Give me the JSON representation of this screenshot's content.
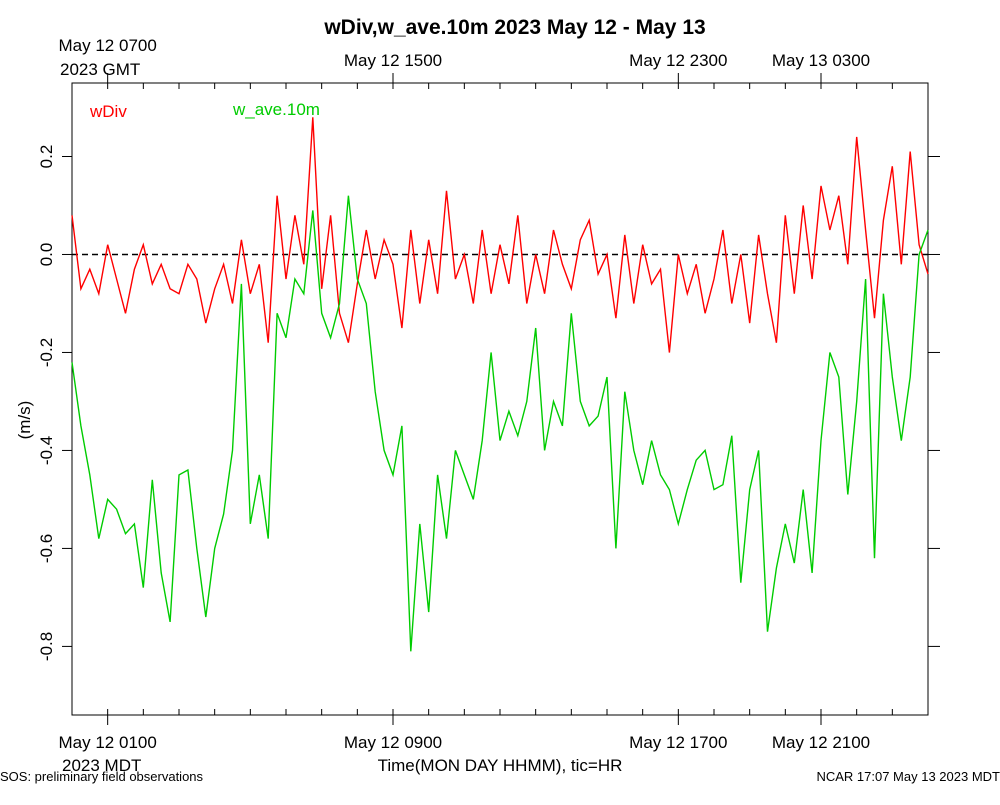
{
  "chart_data": {
    "type": "line",
    "title": "wDiv,w_ave.10m 2023 May 12 - May 13",
    "xlabel": "Time(MON DAY HHMM), tic=HR",
    "ylabel": "(m/s)",
    "x_sublabel": "2023 MDT",
    "x2_sublabel": "2023 GMT",
    "footer_left": "SOS: preliminary field observations",
    "footer_right": "NCAR 17:07 May 13 2023 MDT",
    "xlim": [
      0,
      24
    ],
    "ylim": [
      -0.94,
      0.35
    ],
    "xticks": [
      {
        "value": 1,
        "label": "May 12 0100"
      },
      {
        "value": 9,
        "label": "May 12 0900"
      },
      {
        "value": 17,
        "label": "May 12 1700"
      },
      {
        "value": 21,
        "label": "May 12 2100"
      }
    ],
    "x2ticks": [
      {
        "value": 1,
        "label": "May 12 0700"
      },
      {
        "value": 9,
        "label": "May 12 1500"
      },
      {
        "value": 17,
        "label": "May 12 2300"
      },
      {
        "value": 21,
        "label": "May 13 0300"
      }
    ],
    "xminorticks": [
      0,
      1,
      2,
      3,
      4,
      5,
      6,
      7,
      8,
      9,
      10,
      11,
      12,
      13,
      14,
      15,
      16,
      17,
      18,
      19,
      20,
      21,
      22,
      23,
      24
    ],
    "yticks": [
      0.2,
      {
        "value": 0,
        "label": "0.0"
      },
      -0.2,
      -0.4,
      -0.6,
      -0.8
    ],
    "hline": 0,
    "x": [
      0,
      0.25,
      0.5,
      0.75,
      1,
      1.25,
      1.5,
      1.75,
      2,
      2.25,
      2.5,
      2.75,
      3,
      3.25,
      3.5,
      3.75,
      4,
      4.25,
      4.5,
      4.75,
      5,
      5.25,
      5.5,
      5.75,
      6,
      6.25,
      6.5,
      6.75,
      7,
      7.25,
      7.5,
      7.75,
      8,
      8.25,
      8.5,
      8.75,
      9,
      9.25,
      9.5,
      9.75,
      10,
      10.25,
      10.5,
      10.75,
      11,
      11.25,
      11.5,
      11.75,
      12,
      12.25,
      12.5,
      12.75,
      13,
      13.25,
      13.5,
      13.75,
      14,
      14.25,
      14.5,
      14.75,
      15,
      15.25,
      15.5,
      15.75,
      16,
      16.25,
      16.5,
      16.75,
      17,
      17.25,
      17.5,
      17.75,
      18,
      18.25,
      18.5,
      18.75,
      19,
      19.25,
      19.5,
      19.75,
      20,
      20.25,
      20.5,
      20.75,
      21,
      21.25,
      21.5,
      21.75,
      22,
      22.25,
      22.5,
      22.75,
      23,
      23.25,
      23.5,
      23.75,
      24
    ],
    "series": [
      {
        "name": "wDiv",
        "color": "#ff0000",
        "values": [
          0.08,
          -0.07,
          -0.03,
          -0.08,
          0.02,
          -0.05,
          -0.12,
          -0.03,
          0.02,
          -0.06,
          -0.02,
          -0.07,
          -0.08,
          -0.02,
          -0.05,
          -0.14,
          -0.07,
          -0.02,
          -0.1,
          0.03,
          -0.08,
          -0.02,
          -0.18,
          0.12,
          -0.05,
          0.08,
          -0.02,
          0.28,
          -0.07,
          0.08,
          -0.12,
          -0.18,
          -0.06,
          0.05,
          -0.05,
          0.03,
          -0.02,
          -0.15,
          0.05,
          -0.1,
          0.03,
          -0.08,
          0.13,
          -0.05,
          0,
          -0.1,
          0.05,
          -0.08,
          0.02,
          -0.06,
          0.08,
          -0.1,
          0,
          -0.08,
          0.05,
          -0.02,
          -0.07,
          0.03,
          0.07,
          -0.04,
          0,
          -0.13,
          0.04,
          -0.1,
          0.02,
          -0.06,
          -0.03,
          -0.2,
          0,
          -0.08,
          -0.02,
          -0.12,
          -0.05,
          0.05,
          -0.1,
          0,
          -0.14,
          0.04,
          -0.08,
          -0.18,
          0.08,
          -0.08,
          0.1,
          -0.05,
          0.14,
          0.05,
          0.12,
          -0.02,
          0.24,
          0.05,
          -0.13,
          0.07,
          0.18,
          -0.02,
          0.21,
          0.02,
          -0.04
        ]
      },
      {
        "name": "w_ave.10m",
        "color": "#00cc00",
        "values": [
          -0.22,
          -0.35,
          -0.45,
          -0.58,
          -0.5,
          -0.52,
          -0.57,
          -0.55,
          -0.68,
          -0.46,
          -0.65,
          -0.75,
          -0.45,
          -0.44,
          -0.6,
          -0.74,
          -0.6,
          -0.53,
          -0.4,
          -0.06,
          -0.55,
          -0.45,
          -0.58,
          -0.12,
          -0.17,
          -0.05,
          -0.08,
          0.09,
          -0.12,
          -0.17,
          -0.1,
          0.12,
          -0.05,
          -0.1,
          -0.28,
          -0.4,
          -0.45,
          -0.35,
          -0.81,
          -0.55,
          -0.73,
          -0.45,
          -0.58,
          -0.4,
          -0.45,
          -0.5,
          -0.38,
          -0.2,
          -0.38,
          -0.32,
          -0.37,
          -0.3,
          -0.15,
          -0.4,
          -0.3,
          -0.35,
          -0.12,
          -0.3,
          -0.35,
          -0.33,
          -0.25,
          -0.6,
          -0.28,
          -0.4,
          -0.47,
          -0.38,
          -0.45,
          -0.48,
          -0.55,
          -0.48,
          -0.42,
          -0.4,
          -0.48,
          -0.47,
          -0.37,
          -0.67,
          -0.48,
          -0.4,
          -0.77,
          -0.64,
          -0.55,
          -0.63,
          -0.48,
          -0.65,
          -0.38,
          -0.2,
          -0.25,
          -0.49,
          -0.3,
          -0.05,
          -0.62,
          -0.08,
          -0.25,
          -0.38,
          -0.25,
          0,
          0.05
        ]
      }
    ]
  }
}
